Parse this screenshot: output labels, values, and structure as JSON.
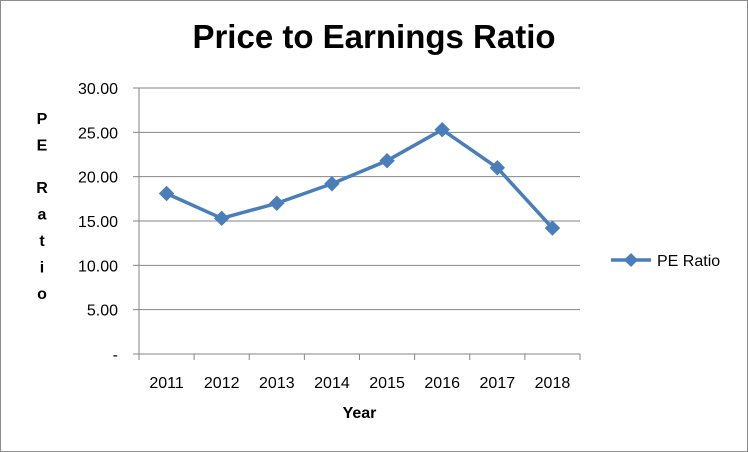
{
  "chart_data": {
    "type": "line",
    "title": "Price to Earnings Ratio",
    "xlabel": "Year",
    "ylabel": "PE Ratio",
    "categories": [
      "2011",
      "2012",
      "2013",
      "2014",
      "2015",
      "2016",
      "2017",
      "2018"
    ],
    "series": [
      {
        "name": "PE Ratio",
        "values": [
          18.1,
          15.3,
          17.0,
          19.2,
          21.8,
          25.3,
          21.0,
          14.2
        ],
        "color": "#4a7ebb"
      }
    ],
    "ylim": [
      0,
      30
    ],
    "yticks": [
      "-",
      "5.00",
      "10.00",
      "15.00",
      "20.00",
      "25.00",
      "30.00"
    ],
    "grid": true,
    "legend": "right",
    "marker": "diamond"
  }
}
